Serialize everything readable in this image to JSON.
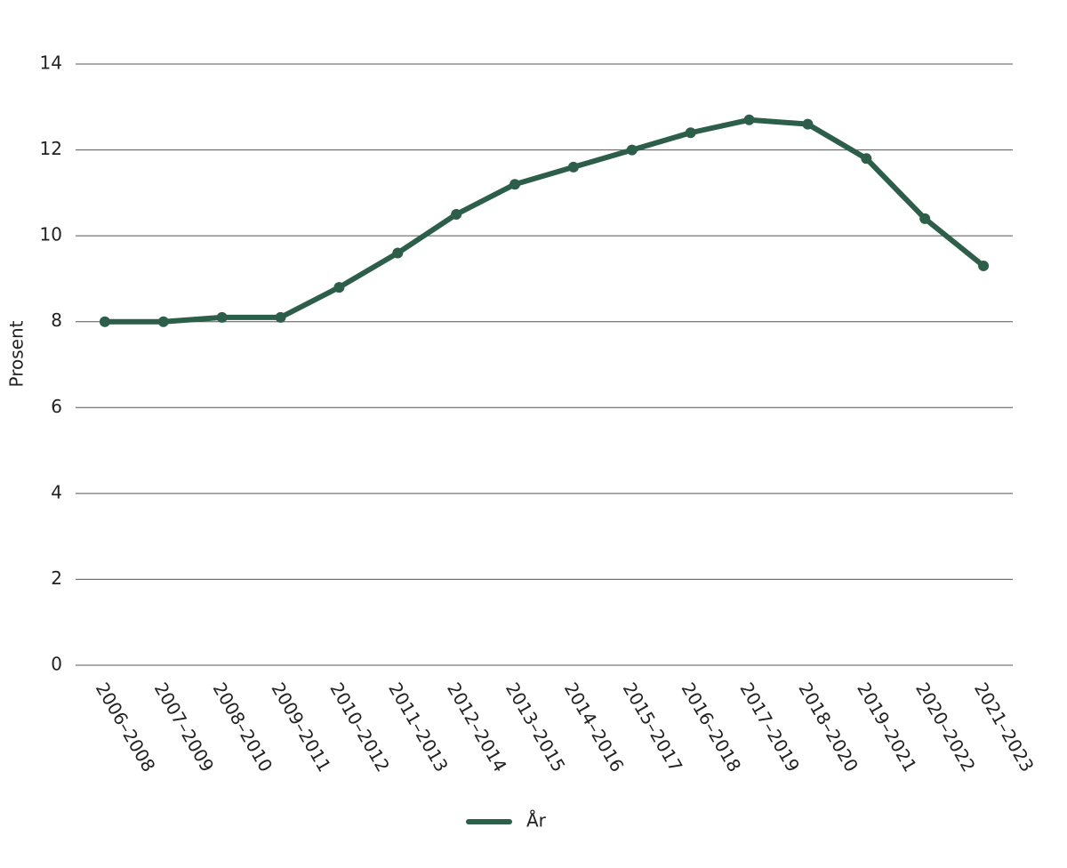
{
  "chart_data": {
    "type": "line",
    "y_label": "Prosent",
    "categories": [
      "2006–2008",
      "2007–2009",
      "2008–2010",
      "2009–2011",
      "2010–2012",
      "2011–2013",
      "2012–2014",
      "2013–2015",
      "2014–2016",
      "2015–2017",
      "2016–2018",
      "2017–2019",
      "2018–2020",
      "2019–2021",
      "2020–2022",
      "2021–2023"
    ],
    "series": [
      {
        "name": "År",
        "color": "#2d5e4a",
        "values": [
          8.0,
          8.0,
          8.1,
          8.1,
          8.8,
          9.6,
          10.5,
          11.2,
          11.6,
          12.0,
          12.4,
          12.7,
          12.6,
          11.8,
          10.4,
          9.3
        ]
      }
    ],
    "ylim": [
      0,
      14
    ],
    "yticks": [
      0,
      2,
      4,
      6,
      8,
      10,
      12,
      14
    ],
    "grid": true,
    "legend": "bottom"
  }
}
